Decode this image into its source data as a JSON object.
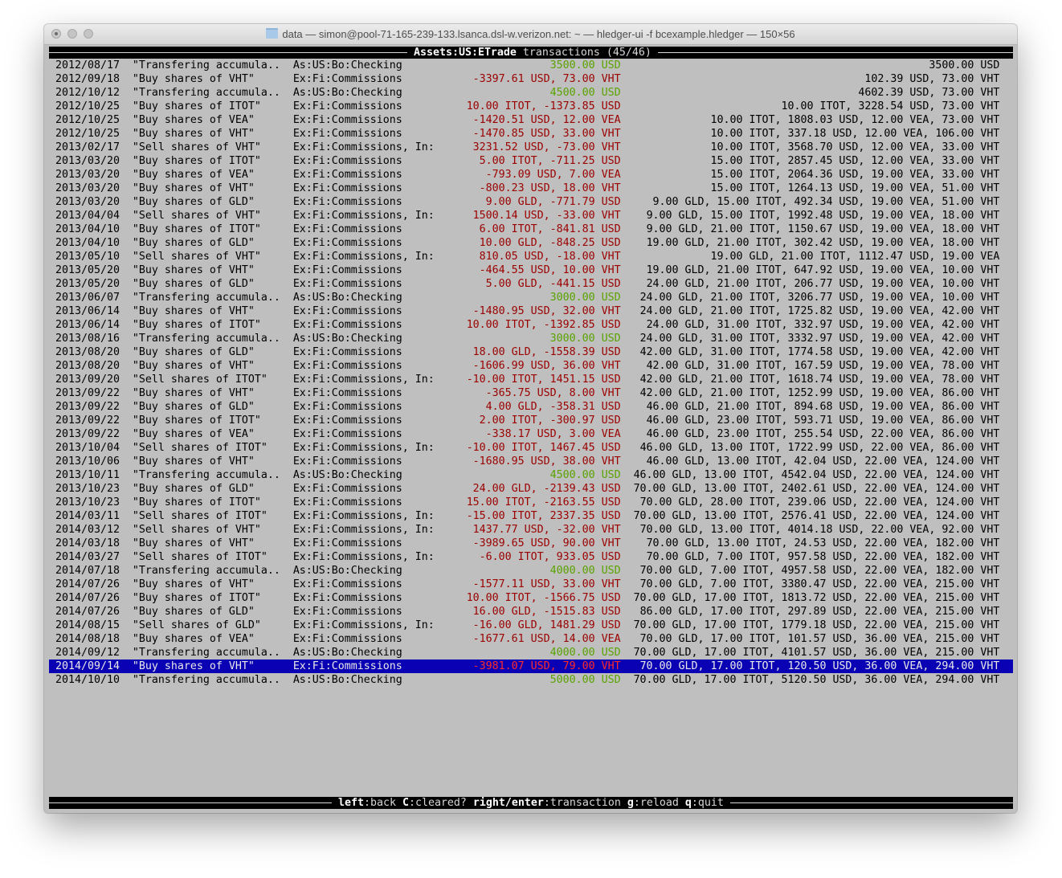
{
  "window": {
    "title": "data — simon@pool-71-165-239-133.lsanca.dsl-w.verizon.net: ~ — hledger-ui -f bcexample.hledger — 150×56"
  },
  "header": {
    "account": "Assets:US:ETrade",
    "suffix": "transactions (45/46)"
  },
  "selected_index": 44,
  "colors": {
    "terminal_bg": "#bfbfbf",
    "debit": "#9b0000",
    "credit": "#5aa300",
    "selection_bg": "#0a00b4"
  },
  "rows": [
    [
      "2012/08/17",
      "\"Transfering accumula..",
      "As:US:Bo:Checking",
      "3500.00 USD",
      "3500.00 USD",
      "credit"
    ],
    [
      "2012/09/18",
      "\"Buy shares of VHT\"",
      "Ex:Fi:Commissions",
      "-3397.61 USD, 73.00 VHT",
      "102.39 USD, 73.00 VHT",
      "debit"
    ],
    [
      "2012/10/12",
      "\"Transfering accumula..",
      "As:US:Bo:Checking",
      "4500.00 USD",
      "4602.39 USD, 73.00 VHT",
      "credit"
    ],
    [
      "2012/10/25",
      "\"Buy shares of ITOT\"",
      "Ex:Fi:Commissions",
      "10.00 ITOT, -1373.85 USD",
      "10.00 ITOT, 3228.54 USD, 73.00 VHT",
      "debit"
    ],
    [
      "2012/10/25",
      "\"Buy shares of VEA\"",
      "Ex:Fi:Commissions",
      "-1420.51 USD, 12.00 VEA",
      "10.00 ITOT, 1808.03 USD, 12.00 VEA, 73.00 VHT",
      "debit"
    ],
    [
      "2012/10/25",
      "\"Buy shares of VHT\"",
      "Ex:Fi:Commissions",
      "-1470.85 USD, 33.00 VHT",
      "10.00 ITOT, 337.18 USD, 12.00 VEA, 106.00 VHT",
      "debit"
    ],
    [
      "2013/02/17",
      "\"Sell shares of VHT\"",
      "Ex:Fi:Commissions, In:..",
      "3231.52 USD, -73.00 VHT",
      "10.00 ITOT, 3568.70 USD, 12.00 VEA, 33.00 VHT",
      "debit"
    ],
    [
      "2013/03/20",
      "\"Buy shares of ITOT\"",
      "Ex:Fi:Commissions",
      "5.00 ITOT, -711.25 USD",
      "15.00 ITOT, 2857.45 USD, 12.00 VEA, 33.00 VHT",
      "debit"
    ],
    [
      "2013/03/20",
      "\"Buy shares of VEA\"",
      "Ex:Fi:Commissions",
      "-793.09 USD, 7.00 VEA",
      "15.00 ITOT, 2064.36 USD, 19.00 VEA, 33.00 VHT",
      "debit"
    ],
    [
      "2013/03/20",
      "\"Buy shares of VHT\"",
      "Ex:Fi:Commissions",
      "-800.23 USD, 18.00 VHT",
      "15.00 ITOT, 1264.13 USD, 19.00 VEA, 51.00 VHT",
      "debit"
    ],
    [
      "2013/03/20",
      "\"Buy shares of GLD\"",
      "Ex:Fi:Commissions",
      "9.00 GLD, -771.79 USD",
      "9.00 GLD, 15.00 ITOT, 492.34 USD, 19.00 VEA, 51.00 VHT",
      "debit"
    ],
    [
      "2013/04/04",
      "\"Sell shares of VHT\"",
      "Ex:Fi:Commissions, In:..",
      "1500.14 USD, -33.00 VHT",
      "9.00 GLD, 15.00 ITOT, 1992.48 USD, 19.00 VEA, 18.00 VHT",
      "debit"
    ],
    [
      "2013/04/10",
      "\"Buy shares of ITOT\"",
      "Ex:Fi:Commissions",
      "6.00 ITOT, -841.81 USD",
      "9.00 GLD, 21.00 ITOT, 1150.67 USD, 19.00 VEA, 18.00 VHT",
      "debit"
    ],
    [
      "2013/04/10",
      "\"Buy shares of GLD\"",
      "Ex:Fi:Commissions",
      "10.00 GLD, -848.25 USD",
      "19.00 GLD, 21.00 ITOT, 302.42 USD, 19.00 VEA, 18.00 VHT",
      "debit"
    ],
    [
      "2013/05/10",
      "\"Sell shares of VHT\"",
      "Ex:Fi:Commissions, In:..",
      "810.05 USD, -18.00 VHT",
      "19.00 GLD, 21.00 ITOT, 1112.47 USD, 19.00 VEA",
      "debit"
    ],
    [
      "2013/05/20",
      "\"Buy shares of VHT\"",
      "Ex:Fi:Commissions",
      "-464.55 USD, 10.00 VHT",
      "19.00 GLD, 21.00 ITOT, 647.92 USD, 19.00 VEA, 10.00 VHT",
      "debit"
    ],
    [
      "2013/05/20",
      "\"Buy shares of GLD\"",
      "Ex:Fi:Commissions",
      "5.00 GLD, -441.15 USD",
      "24.00 GLD, 21.00 ITOT, 206.77 USD, 19.00 VEA, 10.00 VHT",
      "debit"
    ],
    [
      "2013/06/07",
      "\"Transfering accumula..",
      "As:US:Bo:Checking",
      "3000.00 USD",
      "24.00 GLD, 21.00 ITOT, 3206.77 USD, 19.00 VEA, 10.00 VHT",
      "credit"
    ],
    [
      "2013/06/14",
      "\"Buy shares of VHT\"",
      "Ex:Fi:Commissions",
      "-1480.95 USD, 32.00 VHT",
      "24.00 GLD, 21.00 ITOT, 1725.82 USD, 19.00 VEA, 42.00 VHT",
      "debit"
    ],
    [
      "2013/06/14",
      "\"Buy shares of ITOT\"",
      "Ex:Fi:Commissions",
      "10.00 ITOT, -1392.85 USD",
      "24.00 GLD, 31.00 ITOT, 332.97 USD, 19.00 VEA, 42.00 VHT",
      "debit"
    ],
    [
      "2013/08/16",
      "\"Transfering accumula..",
      "As:US:Bo:Checking",
      "3000.00 USD",
      "24.00 GLD, 31.00 ITOT, 3332.97 USD, 19.00 VEA, 42.00 VHT",
      "credit"
    ],
    [
      "2013/08/20",
      "\"Buy shares of GLD\"",
      "Ex:Fi:Commissions",
      "18.00 GLD, -1558.39 USD",
      "42.00 GLD, 31.00 ITOT, 1774.58 USD, 19.00 VEA, 42.00 VHT",
      "debit"
    ],
    [
      "2013/08/20",
      "\"Buy shares of VHT\"",
      "Ex:Fi:Commissions",
      "-1606.99 USD, 36.00 VHT",
      "42.00 GLD, 31.00 ITOT, 167.59 USD, 19.00 VEA, 78.00 VHT",
      "debit"
    ],
    [
      "2013/09/20",
      "\"Sell shares of ITOT\"",
      "Ex:Fi:Commissions, In:..",
      "-10.00 ITOT, 1451.15 USD",
      "42.00 GLD, 21.00 ITOT, 1618.74 USD, 19.00 VEA, 78.00 VHT",
      "debit"
    ],
    [
      "2013/09/22",
      "\"Buy shares of VHT\"",
      "Ex:Fi:Commissions",
      "-365.75 USD, 8.00 VHT",
      "42.00 GLD, 21.00 ITOT, 1252.99 USD, 19.00 VEA, 86.00 VHT",
      "debit"
    ],
    [
      "2013/09/22",
      "\"Buy shares of GLD\"",
      "Ex:Fi:Commissions",
      "4.00 GLD, -358.31 USD",
      "46.00 GLD, 21.00 ITOT, 894.68 USD, 19.00 VEA, 86.00 VHT",
      "debit"
    ],
    [
      "2013/09/22",
      "\"Buy shares of ITOT\"",
      "Ex:Fi:Commissions",
      "2.00 ITOT, -300.97 USD",
      "46.00 GLD, 23.00 ITOT, 593.71 USD, 19.00 VEA, 86.00 VHT",
      "debit"
    ],
    [
      "2013/09/22",
      "\"Buy shares of VEA\"",
      "Ex:Fi:Commissions",
      "-338.17 USD, 3.00 VEA",
      "46.00 GLD, 23.00 ITOT, 255.54 USD, 22.00 VEA, 86.00 VHT",
      "debit"
    ],
    [
      "2013/10/04",
      "\"Sell shares of ITOT\"",
      "Ex:Fi:Commissions, In:..",
      "-10.00 ITOT, 1467.45 USD",
      "46.00 GLD, 13.00 ITOT, 1722.99 USD, 22.00 VEA, 86.00 VHT",
      "debit"
    ],
    [
      "2013/10/06",
      "\"Buy shares of VHT\"",
      "Ex:Fi:Commissions",
      "-1680.95 USD, 38.00 VHT",
      "46.00 GLD, 13.00 ITOT, 42.04 USD, 22.00 VEA, 124.00 VHT",
      "debit"
    ],
    [
      "2013/10/11",
      "\"Transfering accumula..",
      "As:US:Bo:Checking",
      "4500.00 USD",
      "46.00 GLD, 13.00 ITOT, 4542.04 USD, 22.00 VEA, 124.00 VHT",
      "credit"
    ],
    [
      "2013/10/23",
      "\"Buy shares of GLD\"",
      "Ex:Fi:Commissions",
      "24.00 GLD, -2139.43 USD",
      "70.00 GLD, 13.00 ITOT, 2402.61 USD, 22.00 VEA, 124.00 VHT",
      "debit"
    ],
    [
      "2013/10/23",
      "\"Buy shares of ITOT\"",
      "Ex:Fi:Commissions",
      "15.00 ITOT, -2163.55 USD",
      "70.00 GLD, 28.00 ITOT, 239.06 USD, 22.00 VEA, 124.00 VHT",
      "debit"
    ],
    [
      "2014/03/11",
      "\"Sell shares of ITOT\"",
      "Ex:Fi:Commissions, In:..",
      "-15.00 ITOT, 2337.35 USD",
      "70.00 GLD, 13.00 ITOT, 2576.41 USD, 22.00 VEA, 124.00 VHT",
      "debit"
    ],
    [
      "2014/03/12",
      "\"Sell shares of VHT\"",
      "Ex:Fi:Commissions, In:..",
      "1437.77 USD, -32.00 VHT",
      "70.00 GLD, 13.00 ITOT, 4014.18 USD, 22.00 VEA, 92.00 VHT",
      "debit"
    ],
    [
      "2014/03/18",
      "\"Buy shares of VHT\"",
      "Ex:Fi:Commissions",
      "-3989.65 USD, 90.00 VHT",
      "70.00 GLD, 13.00 ITOT, 24.53 USD, 22.00 VEA, 182.00 VHT",
      "debit"
    ],
    [
      "2014/03/27",
      "\"Sell shares of ITOT\"",
      "Ex:Fi:Commissions, In:..",
      "-6.00 ITOT, 933.05 USD",
      "70.00 GLD, 7.00 ITOT, 957.58 USD, 22.00 VEA, 182.00 VHT",
      "debit"
    ],
    [
      "2014/07/18",
      "\"Transfering accumula..",
      "As:US:Bo:Checking",
      "4000.00 USD",
      "70.00 GLD, 7.00 ITOT, 4957.58 USD, 22.00 VEA, 182.00 VHT",
      "credit"
    ],
    [
      "2014/07/26",
      "\"Buy shares of VHT\"",
      "Ex:Fi:Commissions",
      "-1577.11 USD, 33.00 VHT",
      "70.00 GLD, 7.00 ITOT, 3380.47 USD, 22.00 VEA, 215.00 VHT",
      "debit"
    ],
    [
      "2014/07/26",
      "\"Buy shares of ITOT\"",
      "Ex:Fi:Commissions",
      "10.00 ITOT, -1566.75 USD",
      "70.00 GLD, 17.00 ITOT, 1813.72 USD, 22.00 VEA, 215.00 VHT",
      "debit"
    ],
    [
      "2014/07/26",
      "\"Buy shares of GLD\"",
      "Ex:Fi:Commissions",
      "16.00 GLD, -1515.83 USD",
      "86.00 GLD, 17.00 ITOT, 297.89 USD, 22.00 VEA, 215.00 VHT",
      "debit"
    ],
    [
      "2014/08/15",
      "\"Sell shares of GLD\"",
      "Ex:Fi:Commissions, In:..",
      "-16.00 GLD, 1481.29 USD",
      "70.00 GLD, 17.00 ITOT, 1779.18 USD, 22.00 VEA, 215.00 VHT",
      "debit"
    ],
    [
      "2014/08/18",
      "\"Buy shares of VEA\"",
      "Ex:Fi:Commissions",
      "-1677.61 USD, 14.00 VEA",
      "70.00 GLD, 17.00 ITOT, 101.57 USD, 36.00 VEA, 215.00 VHT",
      "debit"
    ],
    [
      "2014/09/12",
      "\"Transfering accumula..",
      "As:US:Bo:Checking",
      "4000.00 USD",
      "70.00 GLD, 17.00 ITOT, 4101.57 USD, 36.00 VEA, 215.00 VHT",
      "credit"
    ],
    [
      "2014/09/14",
      "\"Buy shares of VHT\"",
      "Ex:Fi:Commissions",
      "-3981.07 USD, 79.00 VHT",
      "70.00 GLD, 17.00 ITOT, 120.50 USD, 36.00 VEA, 294.00 VHT",
      "debit"
    ],
    [
      "2014/10/10",
      "\"Transfering accumula..",
      "As:US:Bo:Checking",
      "5000.00 USD",
      "70.00 GLD, 17.00 ITOT, 5120.50 USD, 36.00 VEA, 294.00 VHT",
      "credit"
    ]
  ],
  "footer": [
    {
      "key": "left",
      "label": "back"
    },
    {
      "key": "C",
      "label": "cleared?"
    },
    {
      "key": "right/enter",
      "label": "transaction"
    },
    {
      "key": "g",
      "label": "reload"
    },
    {
      "key": "q",
      "label": "quit"
    }
  ]
}
